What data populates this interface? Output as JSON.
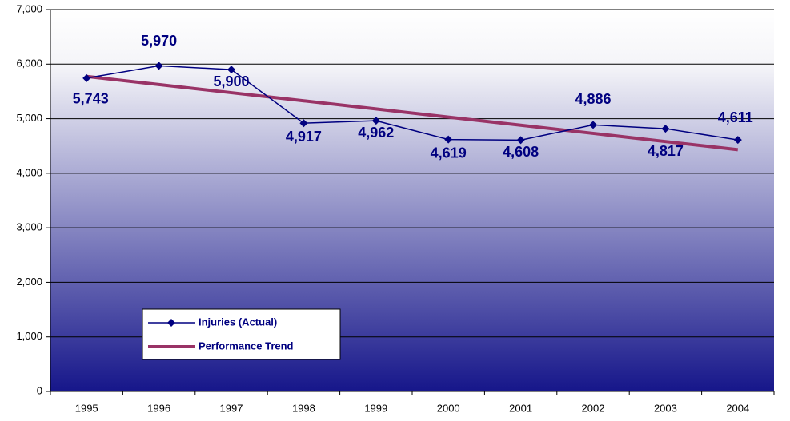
{
  "chart_data": {
    "type": "line",
    "categories": [
      "1995",
      "1996",
      "1997",
      "1998",
      "1999",
      "2000",
      "2001",
      "2002",
      "2003",
      "2004"
    ],
    "series": [
      {
        "name": "Injuries (Actual)",
        "color": "#000080",
        "marker": "diamond",
        "values": [
          5743,
          5970,
          5900,
          4917,
          4962,
          4619,
          4608,
          4886,
          4817,
          4611
        ],
        "value_labels": [
          "5,743",
          "5,970",
          "5,900",
          "4,917",
          "4,962",
          "4,619",
          "4,608",
          "4,886",
          "4,817",
          "4,611"
        ]
      },
      {
        "name": "Performance Trend",
        "color": "#993366",
        "values": [
          5774,
          5625,
          5476,
          5327,
          5178,
          5029,
          4880,
          4731,
          4581,
          4432
        ]
      }
    ],
    "ylim": [
      0,
      7000
    ],
    "yticks": [
      {
        "value": 0,
        "label": "0"
      },
      {
        "value": 1000,
        "label": "1,000"
      },
      {
        "value": 2000,
        "label": "2,000"
      },
      {
        "value": 3000,
        "label": "3,000"
      },
      {
        "value": 4000,
        "label": "4,000"
      },
      {
        "value": 5000,
        "label": "5,000"
      },
      {
        "value": 6000,
        "label": "6,000"
      },
      {
        "value": 7000,
        "label": "7,000"
      }
    ],
    "grid": true
  }
}
